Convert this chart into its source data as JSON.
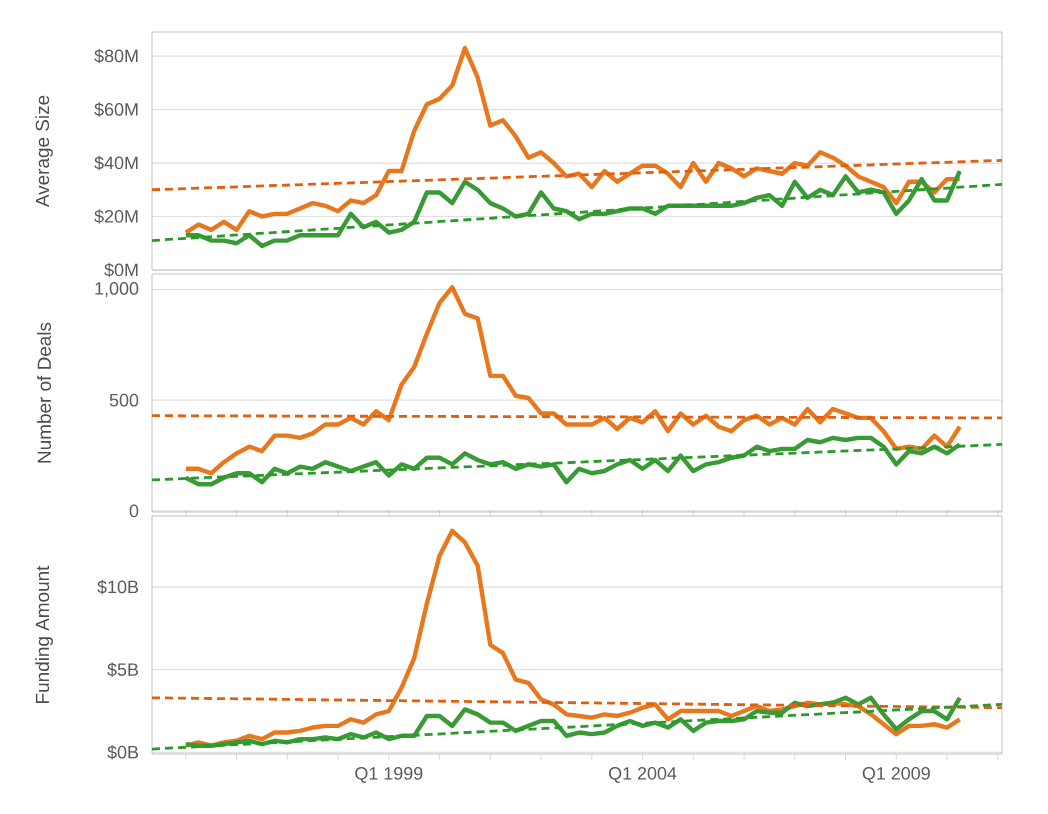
{
  "chart_data": [
    {
      "type": "line",
      "ylabel": "Average Size",
      "xlim": [
        "1994-05",
        "2011-02"
      ],
      "ylim": [
        0,
        89
      ],
      "yticks": [
        {
          "value": 0,
          "label": "$0M"
        },
        {
          "value": 20,
          "label": "$20M"
        },
        {
          "value": 40,
          "label": "$40M"
        },
        {
          "value": 60,
          "label": "$60M"
        },
        {
          "value": 80,
          "label": "$80M"
        }
      ],
      "grid": "y",
      "tick_labels": "y",
      "marker": "none",
      "x": [
        "1995-01",
        "1995-04",
        "1995-07",
        "1995-10",
        "1996-01",
        "1996-04",
        "1996-07",
        "1996-10",
        "1997-01",
        "1997-04",
        "1997-07",
        "1997-10",
        "1998-01",
        "1998-04",
        "1998-07",
        "1998-10",
        "1999-01",
        "1999-04",
        "1999-07",
        "1999-10",
        "2000-01",
        "2000-04",
        "2000-07",
        "2000-10",
        "2001-01",
        "2001-04",
        "2001-07",
        "2001-10",
        "2002-01",
        "2002-04",
        "2002-07",
        "2002-10",
        "2003-01",
        "2003-04",
        "2003-07",
        "2003-10",
        "2004-01",
        "2004-04",
        "2004-07",
        "2004-10",
        "2005-01",
        "2005-04",
        "2005-07",
        "2005-10",
        "2006-01",
        "2006-04",
        "2006-07",
        "2006-10",
        "2007-01",
        "2007-04",
        "2007-07",
        "2007-10",
        "2008-01",
        "2008-04",
        "2008-07",
        "2008-10",
        "2009-01",
        "2009-04",
        "2009-07",
        "2009-10",
        "2010-01",
        "2010-04"
      ],
      "series": [
        {
          "color": "#e8781e",
          "line_style": "solid",
          "values": [
            14,
            17,
            15,
            18,
            15,
            22,
            20,
            21,
            21,
            23,
            25,
            24,
            22,
            26,
            25,
            28,
            37,
            37,
            52,
            62,
            64,
            69,
            83,
            72,
            54,
            56,
            50,
            42,
            44,
            40,
            35,
            36,
            31,
            37,
            33,
            36,
            39,
            39,
            36,
            31,
            40,
            33,
            40,
            38,
            35,
            38,
            37,
            36,
            40,
            39,
            44,
            42,
            39,
            35,
            33,
            31,
            25,
            33,
            33,
            29,
            34,
            34
          ]
        },
        {
          "color": "#3a9a35",
          "line_style": "solid",
          "values": [
            13,
            13,
            11,
            11,
            10,
            13,
            9,
            11,
            11,
            13,
            13,
            13,
            13,
            21,
            16,
            18,
            14,
            15,
            18,
            29,
            29,
            25,
            33,
            30,
            25,
            23,
            20,
            21,
            29,
            23,
            22,
            19,
            21,
            21,
            22,
            23,
            23,
            21,
            24,
            24,
            24,
            24,
            24,
            24,
            25,
            27,
            28,
            24,
            33,
            27,
            30,
            28,
            35,
            29,
            30,
            29,
            21,
            26,
            34,
            26,
            26,
            37
          ]
        },
        {
          "color": "#e0600f",
          "line_style": "dashed",
          "x": [
            "1994-05",
            "2011-02"
          ],
          "values": [
            30,
            41
          ]
        },
        {
          "color": "#2a9a2a",
          "line_style": "dashed",
          "x": [
            "1994-05",
            "2011-02"
          ],
          "values": [
            11,
            32
          ]
        }
      ]
    },
    {
      "type": "line",
      "ylabel": "Number of Deals",
      "xlim": [
        "1994-05",
        "2011-02"
      ],
      "ylim": [
        -5,
        1070
      ],
      "yticks": [
        {
          "value": 0,
          "label": "0"
        },
        {
          "value": 500,
          "label": "500"
        },
        {
          "value": 1000,
          "label": "1,000"
        }
      ],
      "grid": "y",
      "tick_labels": "y",
      "marker": "none",
      "x": [
        "1995-01",
        "1995-04",
        "1995-07",
        "1995-10",
        "1996-01",
        "1996-04",
        "1996-07",
        "1996-10",
        "1997-01",
        "1997-04",
        "1997-07",
        "1997-10",
        "1998-01",
        "1998-04",
        "1998-07",
        "1998-10",
        "1999-01",
        "1999-04",
        "1999-07",
        "1999-10",
        "2000-01",
        "2000-04",
        "2000-07",
        "2000-10",
        "2001-01",
        "2001-04",
        "2001-07",
        "2001-10",
        "2002-01",
        "2002-04",
        "2002-07",
        "2002-10",
        "2003-01",
        "2003-04",
        "2003-07",
        "2003-10",
        "2004-01",
        "2004-04",
        "2004-07",
        "2004-10",
        "2005-01",
        "2005-04",
        "2005-07",
        "2005-10",
        "2006-01",
        "2006-04",
        "2006-07",
        "2006-10",
        "2007-01",
        "2007-04",
        "2007-07",
        "2007-10",
        "2008-01",
        "2008-04",
        "2008-07",
        "2008-10",
        "2009-01",
        "2009-04",
        "2009-07",
        "2009-10",
        "2010-01",
        "2010-04"
      ],
      "series": [
        {
          "color": "#e8781e",
          "line_style": "solid",
          "values": [
            190,
            190,
            170,
            220,
            260,
            290,
            270,
            340,
            340,
            330,
            350,
            390,
            390,
            420,
            390,
            450,
            410,
            570,
            650,
            800,
            940,
            1010,
            890,
            870,
            610,
            610,
            520,
            510,
            440,
            440,
            390,
            390,
            390,
            420,
            370,
            420,
            400,
            450,
            360,
            440,
            390,
            430,
            380,
            360,
            410,
            430,
            390,
            420,
            390,
            460,
            400,
            460,
            440,
            420,
            420,
            360,
            280,
            290,
            280,
            340,
            290,
            380
          ]
        },
        {
          "color": "#3a9a35",
          "line_style": "solid",
          "values": [
            150,
            120,
            120,
            150,
            170,
            170,
            130,
            190,
            170,
            200,
            190,
            220,
            200,
            180,
            200,
            220,
            160,
            210,
            190,
            240,
            240,
            210,
            260,
            230,
            210,
            220,
            190,
            210,
            200,
            210,
            130,
            190,
            170,
            180,
            210,
            230,
            190,
            230,
            180,
            250,
            180,
            210,
            220,
            240,
            250,
            290,
            270,
            280,
            280,
            320,
            310,
            330,
            320,
            330,
            330,
            290,
            210,
            270,
            260,
            290,
            260,
            300
          ]
        },
        {
          "color": "#e0600f",
          "line_style": "dashed",
          "x": [
            "1994-05",
            "2011-02"
          ],
          "values": [
            430,
            420
          ]
        },
        {
          "color": "#2a9a2a",
          "line_style": "dashed",
          "x": [
            "1994-05",
            "2011-02"
          ],
          "values": [
            140,
            300
          ]
        }
      ]
    },
    {
      "type": "line",
      "ylabel": "Funding Amount",
      "xlim": [
        "1994-05",
        "2011-02"
      ],
      "ylim": [
        -0.1,
        14.3
      ],
      "yticks": [
        {
          "value": 0,
          "label": "$0B"
        },
        {
          "value": 5,
          "label": "$5B"
        },
        {
          "value": 10,
          "label": "$10B"
        }
      ],
      "xticks": [
        {
          "value": "1995-01",
          "label": null
        },
        {
          "value": "1996-01",
          "label": null
        },
        {
          "value": "1997-01",
          "label": null
        },
        {
          "value": "1998-01",
          "label": null
        },
        {
          "value": "1999-01",
          "label": "Q1 1999"
        },
        {
          "value": "2000-01",
          "label": null
        },
        {
          "value": "2001-01",
          "label": null
        },
        {
          "value": "2002-01",
          "label": null
        },
        {
          "value": "2003-01",
          "label": null
        },
        {
          "value": "2004-01",
          "label": "Q1 2004"
        },
        {
          "value": "2005-01",
          "label": null
        },
        {
          "value": "2006-01",
          "label": null
        },
        {
          "value": "2007-01",
          "label": null
        },
        {
          "value": "2008-01",
          "label": null
        },
        {
          "value": "2009-01",
          "label": "Q1 2009"
        },
        {
          "value": "2010-01",
          "label": null
        },
        {
          "value": "2011-01",
          "label": null
        }
      ],
      "grid": "y",
      "marker": "none",
      "x": [
        "1995-01",
        "1995-04",
        "1995-07",
        "1995-10",
        "1996-01",
        "1996-04",
        "1996-07",
        "1996-10",
        "1997-01",
        "1997-04",
        "1997-07",
        "1997-10",
        "1998-01",
        "1998-04",
        "1998-07",
        "1998-10",
        "1999-01",
        "1999-04",
        "1999-07",
        "1999-10",
        "2000-01",
        "2000-04",
        "2000-07",
        "2000-10",
        "2001-01",
        "2001-04",
        "2001-07",
        "2001-10",
        "2002-01",
        "2002-04",
        "2002-07",
        "2002-10",
        "2003-01",
        "2003-04",
        "2003-07",
        "2003-10",
        "2004-01",
        "2004-04",
        "2004-07",
        "2004-10",
        "2005-01",
        "2005-04",
        "2005-07",
        "2005-10",
        "2006-01",
        "2006-04",
        "2006-07",
        "2006-10",
        "2007-01",
        "2007-04",
        "2007-07",
        "2007-10",
        "2008-01",
        "2008-04",
        "2008-07",
        "2008-10",
        "2009-01",
        "2009-04",
        "2009-07",
        "2009-10",
        "2010-01",
        "2010-04"
      ],
      "series": [
        {
          "color": "#e8781e",
          "line_style": "solid",
          "values": [
            0.4,
            0.6,
            0.4,
            0.6,
            0.7,
            1.0,
            0.8,
            1.2,
            1.2,
            1.3,
            1.5,
            1.6,
            1.6,
            2.0,
            1.8,
            2.3,
            2.5,
            3.9,
            5.7,
            9.0,
            11.9,
            13.4,
            12.7,
            11.3,
            6.5,
            6.0,
            4.4,
            4.2,
            3.2,
            2.9,
            2.3,
            2.2,
            2.1,
            2.3,
            2.2,
            2.4,
            2.7,
            2.9,
            2.0,
            2.5,
            2.5,
            2.5,
            2.5,
            2.2,
            2.5,
            2.8,
            2.5,
            2.6,
            2.8,
            3.0,
            2.9,
            3.0,
            2.9,
            2.8,
            2.3,
            1.7,
            1.1,
            1.6,
            1.6,
            1.7,
            1.5,
            2.0
          ]
        },
        {
          "color": "#3a9a35",
          "line_style": "solid",
          "values": [
            0.5,
            0.4,
            0.4,
            0.5,
            0.6,
            0.7,
            0.5,
            0.7,
            0.6,
            0.8,
            0.8,
            0.9,
            0.8,
            1.1,
            0.9,
            1.2,
            0.8,
            1.0,
            1.0,
            2.2,
            2.2,
            1.6,
            2.6,
            2.3,
            1.8,
            1.8,
            1.3,
            1.6,
            1.9,
            1.9,
            1.0,
            1.2,
            1.1,
            1.2,
            1.6,
            1.9,
            1.6,
            1.8,
            1.5,
            2.0,
            1.3,
            1.8,
            1.9,
            1.9,
            2.0,
            2.5,
            2.4,
            2.4,
            3.0,
            2.8,
            2.9,
            3.0,
            3.3,
            2.9,
            3.3,
            2.3,
            1.4,
            2.0,
            2.5,
            2.5,
            2.0,
            3.3
          ]
        },
        {
          "color": "#e0600f",
          "line_style": "dashed",
          "x": [
            "1994-05",
            "2011-02"
          ],
          "values": [
            3.3,
            2.7
          ]
        },
        {
          "color": "#2a9a2a",
          "line_style": "dashed",
          "x": [
            "1994-05",
            "2011-02"
          ],
          "values": [
            0.2,
            2.9
          ]
        }
      ]
    }
  ]
}
